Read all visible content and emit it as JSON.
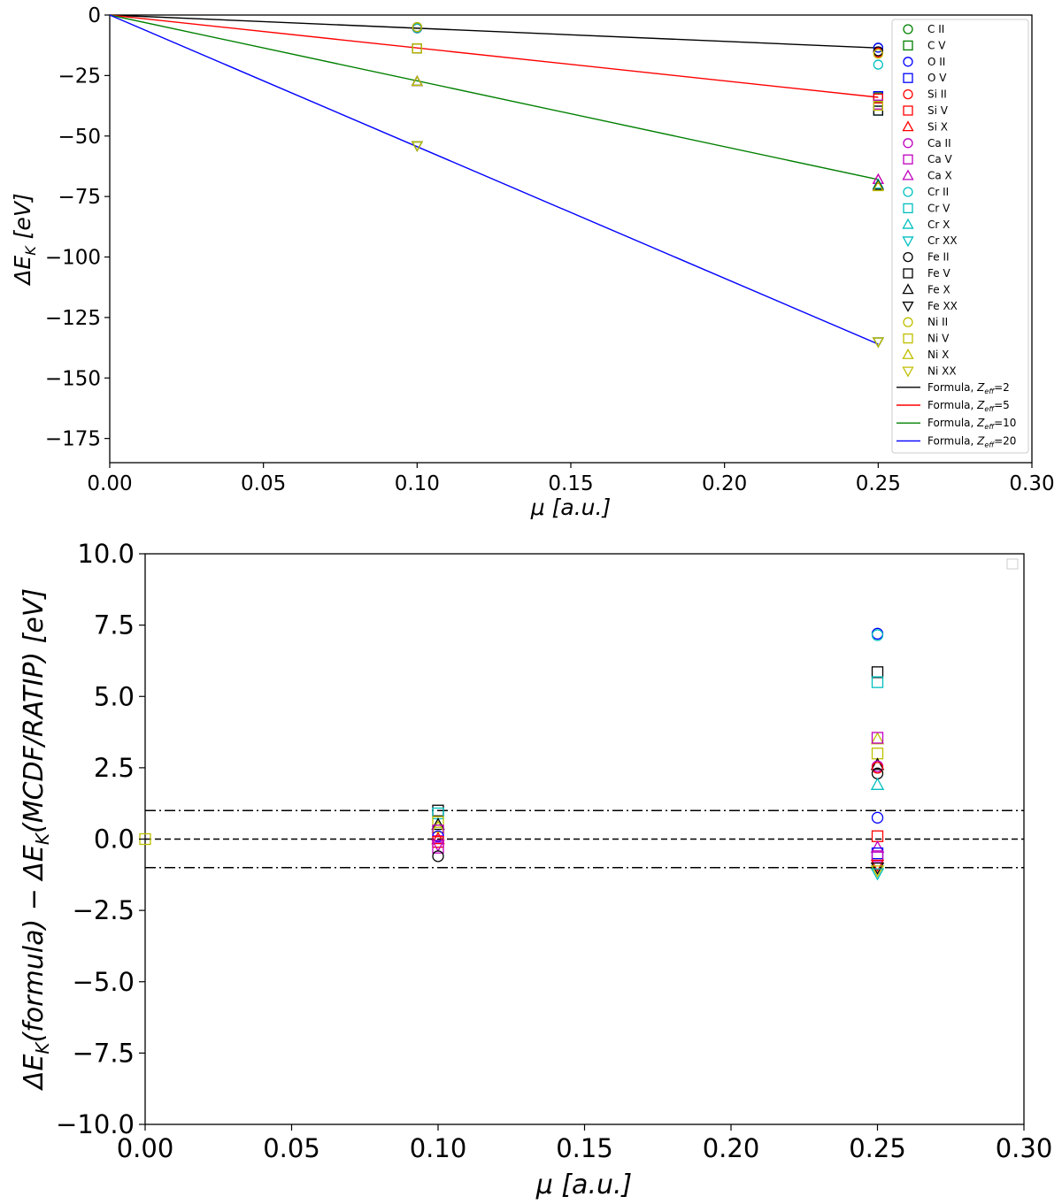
{
  "chart_data": [
    {
      "type": "scatter",
      "ylabel": "ΔE_K [eV]",
      "xlabel": "μ [a.u.]",
      "xlim": [
        0,
        0.3
      ],
      "ylim": [
        -185,
        0
      ],
      "xticks": [
        "0.00",
        "0.05",
        "0.10",
        "0.15",
        "0.20",
        "0.25",
        "0.30"
      ],
      "xtick_values": [
        0,
        0.05,
        0.1,
        0.15,
        0.2,
        0.25,
        0.3
      ],
      "yticks": [
        "0",
        "−25",
        "−50",
        "−75",
        "−100",
        "−125",
        "−150",
        "−175"
      ],
      "ytick_values": [
        0,
        -25,
        -50,
        -75,
        -100,
        -125,
        -150,
        -175
      ],
      "legend_position": "right",
      "series": [
        {
          "name": "C II",
          "marker": "circle",
          "color": "#008000",
          "x": [
            0.1,
            0.25
          ],
          "y": [
            -5.5,
            -13.5
          ]
        },
        {
          "name": "C V",
          "marker": "square",
          "color": "#008000",
          "x": [
            0.1,
            0.25
          ],
          "y": [
            -13.8,
            -34.0
          ]
        },
        {
          "name": "O II",
          "marker": "circle",
          "color": "#0000ff",
          "x": [
            0.1,
            0.25
          ],
          "y": [
            -5.5,
            -13.5
          ]
        },
        {
          "name": "O V",
          "marker": "square",
          "color": "#0000ff",
          "x": [
            0.1,
            0.25
          ],
          "y": [
            -13.8,
            -33.5
          ]
        },
        {
          "name": "Si II",
          "marker": "circle",
          "color": "#ff0000",
          "x": [
            0.1,
            0.25
          ],
          "y": [
            -5.5,
            -15.5
          ]
        },
        {
          "name": "Si V",
          "marker": "square",
          "color": "#ff0000",
          "x": [
            0.1,
            0.25
          ],
          "y": [
            -13.8,
            -34.5
          ]
        },
        {
          "name": "Si X",
          "marker": "triangle-up",
          "color": "#ff0000",
          "x": [
            0.1,
            0.25
          ],
          "y": [
            -27.5,
            -68.0
          ]
        },
        {
          "name": "Ca II",
          "marker": "circle",
          "color": "#bf00bf",
          "x": [
            0.1,
            0.25
          ],
          "y": [
            -5.5,
            -15.0
          ]
        },
        {
          "name": "Ca V",
          "marker": "square",
          "color": "#bf00bf",
          "x": [
            0.1,
            0.25
          ],
          "y": [
            -13.8,
            -37.0
          ]
        },
        {
          "name": "Ca X",
          "marker": "triangle-up",
          "color": "#bf00bf",
          "x": [
            0.1,
            0.25
          ],
          "y": [
            -27.5,
            -68.0
          ]
        },
        {
          "name": "Cr II",
          "marker": "circle",
          "color": "#00bfbf",
          "x": [
            0.1,
            0.25
          ],
          "y": [
            -5.5,
            -20.5
          ]
        },
        {
          "name": "Cr V",
          "marker": "square",
          "color": "#00bfbf",
          "x": [
            0.1,
            0.25
          ],
          "y": [
            -13.8,
            -39.5
          ]
        },
        {
          "name": "Cr X",
          "marker": "triangle-up",
          "color": "#00bfbf",
          "x": [
            0.1,
            0.25
          ],
          "y": [
            -27.5,
            -70.0
          ]
        },
        {
          "name": "Cr XX",
          "marker": "triangle-down",
          "color": "#00bfbf",
          "x": [
            0.1,
            0.25
          ],
          "y": [
            -54.0,
            -135.0
          ]
        },
        {
          "name": "Fe II",
          "marker": "circle",
          "color": "#000000",
          "x": [
            0.1,
            0.25
          ],
          "y": [
            -5.0,
            -15.0
          ]
        },
        {
          "name": "Fe V",
          "marker": "square",
          "color": "#000000",
          "x": [
            0.1,
            0.25
          ],
          "y": [
            -13.8,
            -39.5
          ]
        },
        {
          "name": "Fe X",
          "marker": "triangle-up",
          "color": "#000000",
          "x": [
            0.1,
            0.25
          ],
          "y": [
            -27.5,
            -70.5
          ]
        },
        {
          "name": "Fe XX",
          "marker": "triangle-down",
          "color": "#000000",
          "x": [
            0.1,
            0.25
          ],
          "y": [
            -54.0,
            -135.0
          ]
        },
        {
          "name": "Ni II",
          "marker": "circle",
          "color": "#bfbf00",
          "x": [
            0.1,
            0.25
          ],
          "y": [
            -5.0,
            -16.0
          ]
        },
        {
          "name": "Ni V",
          "marker": "square",
          "color": "#bfbf00",
          "x": [
            0.1,
            0.25
          ],
          "y": [
            -13.8,
            -37.5
          ]
        },
        {
          "name": "Ni X",
          "marker": "triangle-up",
          "color": "#bfbf00",
          "x": [
            0.1,
            0.25
          ],
          "y": [
            -27.5,
            -71.0
          ]
        },
        {
          "name": "Ni XX",
          "marker": "triangle-down",
          "color": "#bfbf00",
          "x": [
            0.1,
            0.25
          ],
          "y": [
            -54.0,
            -135.0
          ]
        }
      ],
      "lines": [
        {
          "name": "Formula, Z_eff=2",
          "zeff": "2",
          "color": "#000000",
          "x": [
            0,
            0.25
          ],
          "y": [
            0,
            -13.6
          ]
        },
        {
          "name": "Formula, Z_eff=5",
          "zeff": "5",
          "color": "#ff0000",
          "x": [
            0,
            0.25
          ],
          "y": [
            0,
            -34.0
          ]
        },
        {
          "name": "Formula, Z_eff=10",
          "zeff": "10",
          "color": "#008000",
          "x": [
            0,
            0.25
          ],
          "y": [
            0,
            -68.0
          ]
        },
        {
          "name": "Formula, Z_eff=20",
          "zeff": "20",
          "color": "#0000ff",
          "x": [
            0,
            0.25
          ],
          "y": [
            0,
            -136.0
          ]
        }
      ]
    },
    {
      "type": "scatter",
      "ylabel": "ΔE_K(formula) − ΔE_K(MCDF/RATIP) [eV]",
      "xlabel": "μ [a.u.]",
      "xlim": [
        0,
        0.3
      ],
      "ylim": [
        -10,
        10
      ],
      "xticks": [
        "0.00",
        "0.05",
        "0.10",
        "0.15",
        "0.20",
        "0.25",
        "0.30"
      ],
      "xtick_values": [
        0,
        0.05,
        0.1,
        0.15,
        0.2,
        0.25,
        0.3
      ],
      "yticks": [
        "10.0",
        "7.5",
        "5.0",
        "2.5",
        "0.0",
        "−2.5",
        "−5.0",
        "−7.5",
        "−10.0"
      ],
      "ytick_values": [
        10,
        7.5,
        5,
        2.5,
        0,
        -2.5,
        -5,
        -7.5,
        -10
      ],
      "reference_lines": [
        {
          "y": 1,
          "style": "dashdot"
        },
        {
          "y": 0,
          "style": "dashed"
        },
        {
          "y": -1,
          "style": "dashdot"
        }
      ],
      "points": [
        {
          "x": 0.0,
          "y": 0.0,
          "marker": "square",
          "color": "#bfbf00"
        },
        {
          "x": 0.1,
          "y": 1.0,
          "marker": "square",
          "color": "#000000"
        },
        {
          "x": 0.1,
          "y": 0.9,
          "marker": "square",
          "color": "#00bfbf"
        },
        {
          "x": 0.1,
          "y": 0.6,
          "marker": "square",
          "color": "#bfbf00"
        },
        {
          "x": 0.1,
          "y": 0.5,
          "marker": "triangle-up",
          "color": "#000000"
        },
        {
          "x": 0.1,
          "y": 0.4,
          "marker": "triangle-up",
          "color": "#bfbf00"
        },
        {
          "x": 0.1,
          "y": 0.3,
          "marker": "square",
          "color": "#bf00bf"
        },
        {
          "x": 0.1,
          "y": 0.1,
          "marker": "circle",
          "color": "#0000ff"
        },
        {
          "x": 0.1,
          "y": 0.0,
          "marker": "triangle-up",
          "color": "#ff0000"
        },
        {
          "x": 0.1,
          "y": -0.1,
          "marker": "square",
          "color": "#ff0000"
        },
        {
          "x": 0.1,
          "y": -0.2,
          "marker": "triangle-down",
          "color": "#bf00bf"
        },
        {
          "x": 0.1,
          "y": -0.3,
          "marker": "square",
          "color": "#bf00bf"
        },
        {
          "x": 0.1,
          "y": -0.6,
          "marker": "circle",
          "color": "#000000"
        },
        {
          "x": 0.25,
          "y": 7.2,
          "marker": "circle",
          "color": "#0000ff"
        },
        {
          "x": 0.25,
          "y": 7.15,
          "marker": "circle",
          "color": "#00bfbf"
        },
        {
          "x": 0.25,
          "y": 5.85,
          "marker": "square",
          "color": "#000000"
        },
        {
          "x": 0.25,
          "y": 5.5,
          "marker": "square",
          "color": "#00bfbf"
        },
        {
          "x": 0.25,
          "y": 3.5,
          "marker": "triangle-up",
          "color": "#bfbf00"
        },
        {
          "x": 0.25,
          "y": 3.55,
          "marker": "square",
          "color": "#bf00bf"
        },
        {
          "x": 0.25,
          "y": 3.0,
          "marker": "square",
          "color": "#bfbf00"
        },
        {
          "x": 0.25,
          "y": 2.6,
          "marker": "triangle-up",
          "color": "#000000"
        },
        {
          "x": 0.25,
          "y": 2.55,
          "marker": "circle",
          "color": "#bf00bf"
        },
        {
          "x": 0.25,
          "y": 2.5,
          "marker": "circle",
          "color": "#ff0000"
        },
        {
          "x": 0.25,
          "y": 2.3,
          "marker": "circle",
          "color": "#000000"
        },
        {
          "x": 0.25,
          "y": 1.9,
          "marker": "triangle-up",
          "color": "#00bfbf"
        },
        {
          "x": 0.25,
          "y": 0.75,
          "marker": "circle",
          "color": "#0000ff"
        },
        {
          "x": 0.25,
          "y": 0.1,
          "marker": "square",
          "color": "#ff0000"
        },
        {
          "x": 0.25,
          "y": -0.3,
          "marker": "triangle-up",
          "color": "#bf00bf"
        },
        {
          "x": 0.25,
          "y": -0.5,
          "marker": "square",
          "color": "#0000ff"
        },
        {
          "x": 0.25,
          "y": -0.6,
          "marker": "square",
          "color": "#bf00bf"
        },
        {
          "x": 0.25,
          "y": -0.9,
          "marker": "triangle-down",
          "color": "#ff0000"
        },
        {
          "x": 0.25,
          "y": -1.0,
          "marker": "triangle-down",
          "color": "#000000"
        },
        {
          "x": 0.25,
          "y": -1.1,
          "marker": "triangle-down",
          "color": "#bfbf00"
        },
        {
          "x": 0.25,
          "y": -1.2,
          "marker": "triangle-down",
          "color": "#00bfbf"
        }
      ]
    }
  ]
}
